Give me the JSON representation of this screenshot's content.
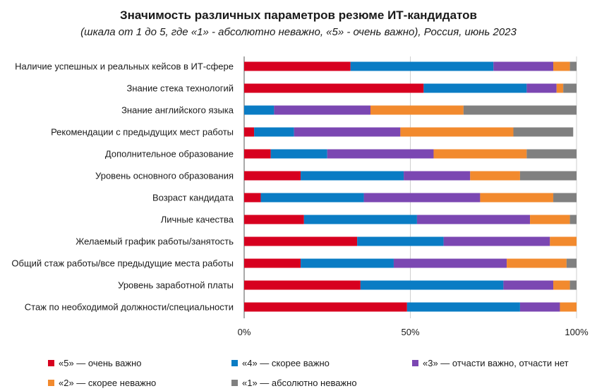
{
  "colors": {
    "very_important": "#d7001f",
    "rather_important": "#0a7cc4",
    "partly": "#7b47b2",
    "rather_unimportant": "#f28a2e",
    "not_important": "#808080",
    "grid": "#cfcfcf",
    "axis": "#555555"
  },
  "chart_data": {
    "type": "bar",
    "orientation": "horizontal",
    "stacked": true,
    "percent": true,
    "title": "Значимость различных параметров резюме ИТ-кандидатов",
    "subtitle": "(шкала от 1 до 5, где «1» - абсолютно неважно, «5» - очень важно), Россия, июнь 2023",
    "xlim": [
      0,
      100
    ],
    "xticks": [
      "0%",
      "50%",
      "100%"
    ],
    "grid": true,
    "legend_position": "bottom",
    "categories": [
      "Наличие успешных и реальных кейсов в ИТ-сфере",
      "Знание стека технологий",
      "Знание английского языка",
      "Рекомендации с предыдущих мест работы",
      "Дополнительное образование",
      "Уровень основного образования",
      "Возраст кандидата",
      "Личные качества",
      "Желаемый график работы/занятость",
      "Общий стаж работы/все предыдущие места работы",
      "Уровень заработной платы",
      "Стаж по необходимой должности/специальности"
    ],
    "series": [
      {
        "name": "«5» — очень важно",
        "color_key": "very_important",
        "values": [
          32,
          54,
          0,
          3,
          8,
          17,
          5,
          18,
          34,
          17,
          35,
          49
        ]
      },
      {
        "name": "«4» — скорее важно",
        "color_key": "rather_important",
        "values": [
          43,
          31,
          9,
          12,
          17,
          31,
          31,
          34,
          26,
          28,
          43,
          34
        ]
      },
      {
        "name": "«3» — отчасти важно, отчасти нет",
        "color_key": "partly",
        "values": [
          18,
          9,
          29,
          32,
          32,
          20,
          35,
          34,
          32,
          34,
          15,
          12
        ]
      },
      {
        "name": "«2» — скорее неважно",
        "color_key": "rather_unimportant",
        "values": [
          5,
          2,
          28,
          34,
          28,
          15,
          22,
          12,
          8,
          18,
          5,
          5
        ]
      },
      {
        "name": "«1» — абсолютно неважно",
        "color_key": "not_important",
        "values": [
          2,
          4,
          34,
          18,
          15,
          17,
          7,
          2,
          0,
          3,
          2,
          0
        ]
      }
    ]
  }
}
